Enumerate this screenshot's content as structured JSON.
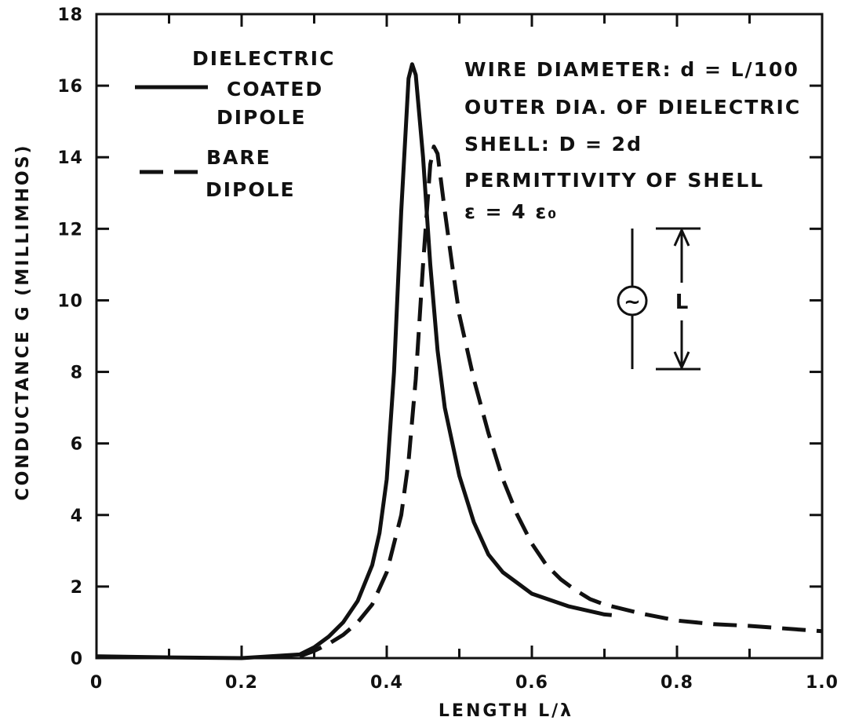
{
  "chart_data": {
    "type": "line",
    "xlabel": "LENGTH L/λ",
    "ylabel": "CONDUCTANCE G (MILLIMHOS)",
    "xlim": [
      0,
      1.0
    ],
    "ylim": [
      0,
      18
    ],
    "x_ticks": [
      "0",
      "0.2",
      "0.4",
      "0.6",
      "0.8",
      "1.0"
    ],
    "y_ticks": [
      "0",
      "2",
      "4",
      "6",
      "8",
      "10",
      "12",
      "14",
      "16",
      "18"
    ],
    "x_tick_values": [
      0,
      0.2,
      0.4,
      0.6,
      0.8,
      1.0
    ],
    "y_tick_values": [
      0,
      2,
      4,
      6,
      8,
      10,
      12,
      14,
      16,
      18
    ],
    "grid": false,
    "legend_position": "top-left",
    "series": [
      {
        "name": "DIELECTRIC COATED DIPOLE",
        "style": "solid",
        "x": [
          0.0,
          0.1,
          0.2,
          0.28,
          0.3,
          0.32,
          0.34,
          0.36,
          0.38,
          0.39,
          0.4,
          0.41,
          0.42,
          0.43,
          0.435,
          0.44,
          0.45,
          0.46,
          0.47,
          0.48,
          0.5,
          0.52,
          0.54,
          0.56,
          0.58,
          0.6,
          0.65,
          0.7,
          0.71
        ],
        "y": [
          0.05,
          0.02,
          0.0,
          0.1,
          0.3,
          0.6,
          1.0,
          1.6,
          2.6,
          3.5,
          5.0,
          8.0,
          12.5,
          16.2,
          16.6,
          16.3,
          14.0,
          11.0,
          8.6,
          7.0,
          5.1,
          3.8,
          2.9,
          2.4,
          2.1,
          1.8,
          1.45,
          1.22,
          1.2
        ]
      },
      {
        "name": "BARE DIPOLE",
        "style": "dashed",
        "x": [
          0.28,
          0.3,
          0.32,
          0.34,
          0.36,
          0.38,
          0.4,
          0.42,
          0.43,
          0.44,
          0.45,
          0.46,
          0.465,
          0.47,
          0.48,
          0.49,
          0.5,
          0.52,
          0.54,
          0.56,
          0.58,
          0.6,
          0.62,
          0.64,
          0.66,
          0.68,
          0.7,
          0.75,
          0.8,
          0.85,
          0.9,
          1.0
        ],
        "y": [
          0.05,
          0.2,
          0.4,
          0.65,
          1.0,
          1.5,
          2.4,
          4.0,
          5.5,
          7.8,
          11.0,
          13.8,
          14.3,
          14.1,
          12.5,
          11.0,
          9.6,
          7.8,
          6.3,
          5.0,
          4.0,
          3.2,
          2.6,
          2.2,
          1.9,
          1.65,
          1.5,
          1.25,
          1.05,
          0.95,
          0.9,
          0.75
        ]
      }
    ],
    "legend": {
      "solid_lines": [
        "DIELECTRIC",
        "COATED",
        "DIPOLE"
      ],
      "dashed_lines": [
        "BARE",
        "DIPOLE"
      ]
    },
    "annotations": {
      "notes": [
        "WIRE DIAMETER: d = L/100",
        "OUTER DIA. OF DIELECTRIC",
        "SHELL: D = 2d",
        "PERMITTIVITY OF SHELL",
        "ε = 4 ε₀"
      ],
      "inset_label": "L",
      "inset_source_symbol": "~"
    }
  },
  "colors": {
    "ink": "#111111",
    "background": "#ffffff"
  }
}
